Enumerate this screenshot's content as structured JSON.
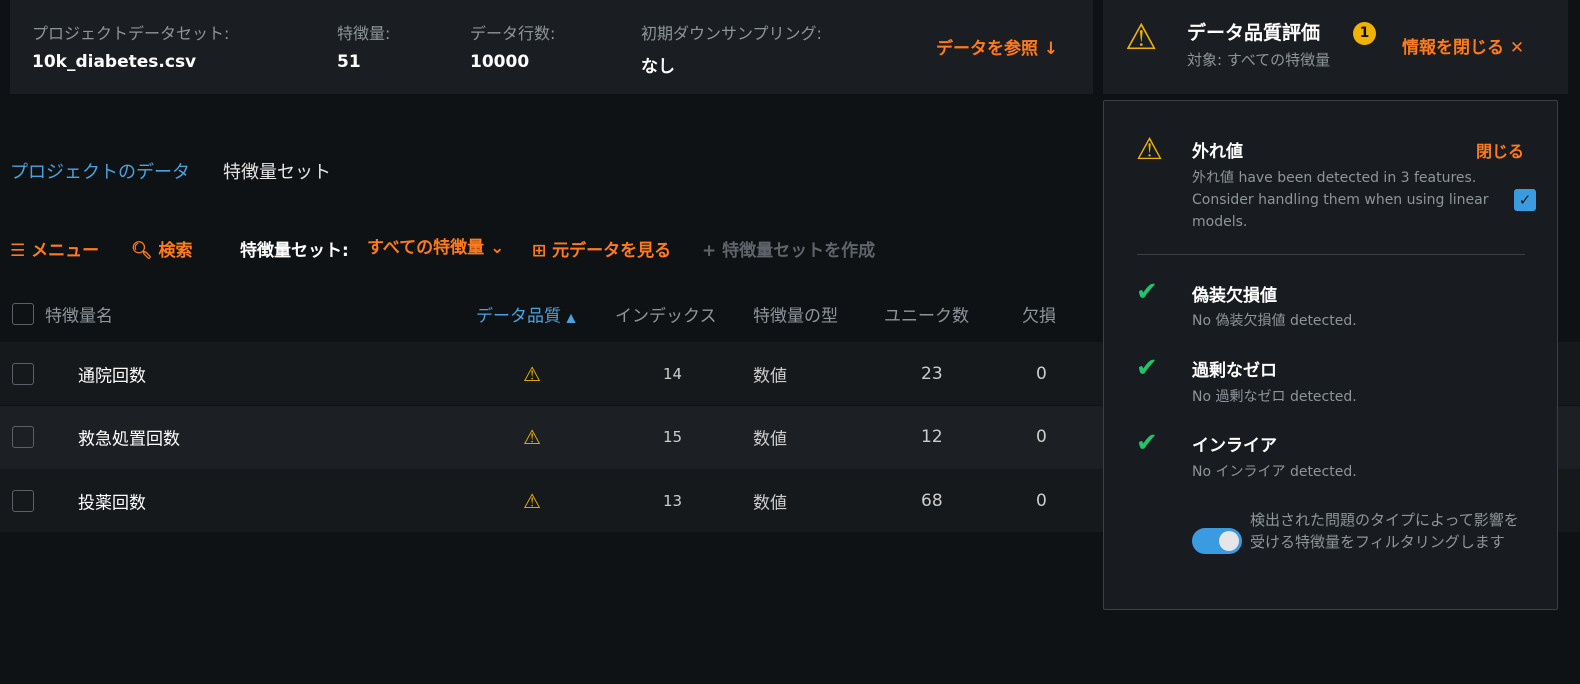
{
  "project": {
    "dataset_label": "プロジェクトデータセット:",
    "dataset": "10k_diabetes.csv",
    "features_label": "特徴量:",
    "features": "51",
    "rows_label": "データ行数:",
    "rows": "10000",
    "downsampling_label": "初期ダウンサンプリング:",
    "downsampling": "なし",
    "view_data": "データを参照 ↓"
  },
  "tabs": {
    "project_data": "プロジェクトのデータ",
    "feature_sets": "特徴量セット"
  },
  "toolbar": {
    "menu": "メニュー",
    "search": "検索",
    "feature_set_label": "特徴量セット:",
    "feature_set_value": "すべての特徴量",
    "view_raw": "元データを見る",
    "create_set": "特徴量セットを作成"
  },
  "table": {
    "headers": [
      "特徴量名",
      "データ品質",
      "インデックス",
      "特徴量の型",
      "ユニーク数",
      "欠損"
    ],
    "rows": [
      {
        "name": "通院回数",
        "quality": "warning",
        "index": "14",
        "type": "数値",
        "unique": "23",
        "missing": "0"
      },
      {
        "name": "救急処置回数",
        "quality": "warning",
        "index": "15",
        "type": "数値",
        "unique": "12",
        "missing": "0"
      },
      {
        "name": "投薬回数",
        "quality": "warning",
        "index": "13",
        "type": "数値",
        "unique": "68",
        "missing": "0"
      }
    ]
  },
  "quality": {
    "title": "データ品質評価",
    "badge": "1",
    "subtitle": "対象: すべての特徴量",
    "close_info": "情報を閉じる ✕",
    "items": [
      {
        "title": "外れ値",
        "status": "warning",
        "desc": "外れ値 have been detected in 3 features. Consider handling them when using linear models.",
        "close": "閉じる",
        "checked": true
      },
      {
        "title": "偽装欠損値",
        "status": "ok",
        "desc": "No 偽装欠損値 detected."
      },
      {
        "title": "過剰なゼロ",
        "status": "ok",
        "desc": "No 過剰なゼロ detected."
      },
      {
        "title": "インライア",
        "status": "ok",
        "desc": "No インライア detected."
      }
    ],
    "filter_toggle": "検出された問題のタイプによって影響を受ける特徴量をフィルタリングします",
    "filter_on": true
  },
  "colors": {
    "accent": "#ff7a1a",
    "link": "#4aa3df",
    "warning": "#f0b400",
    "ok": "#1fc46b"
  }
}
